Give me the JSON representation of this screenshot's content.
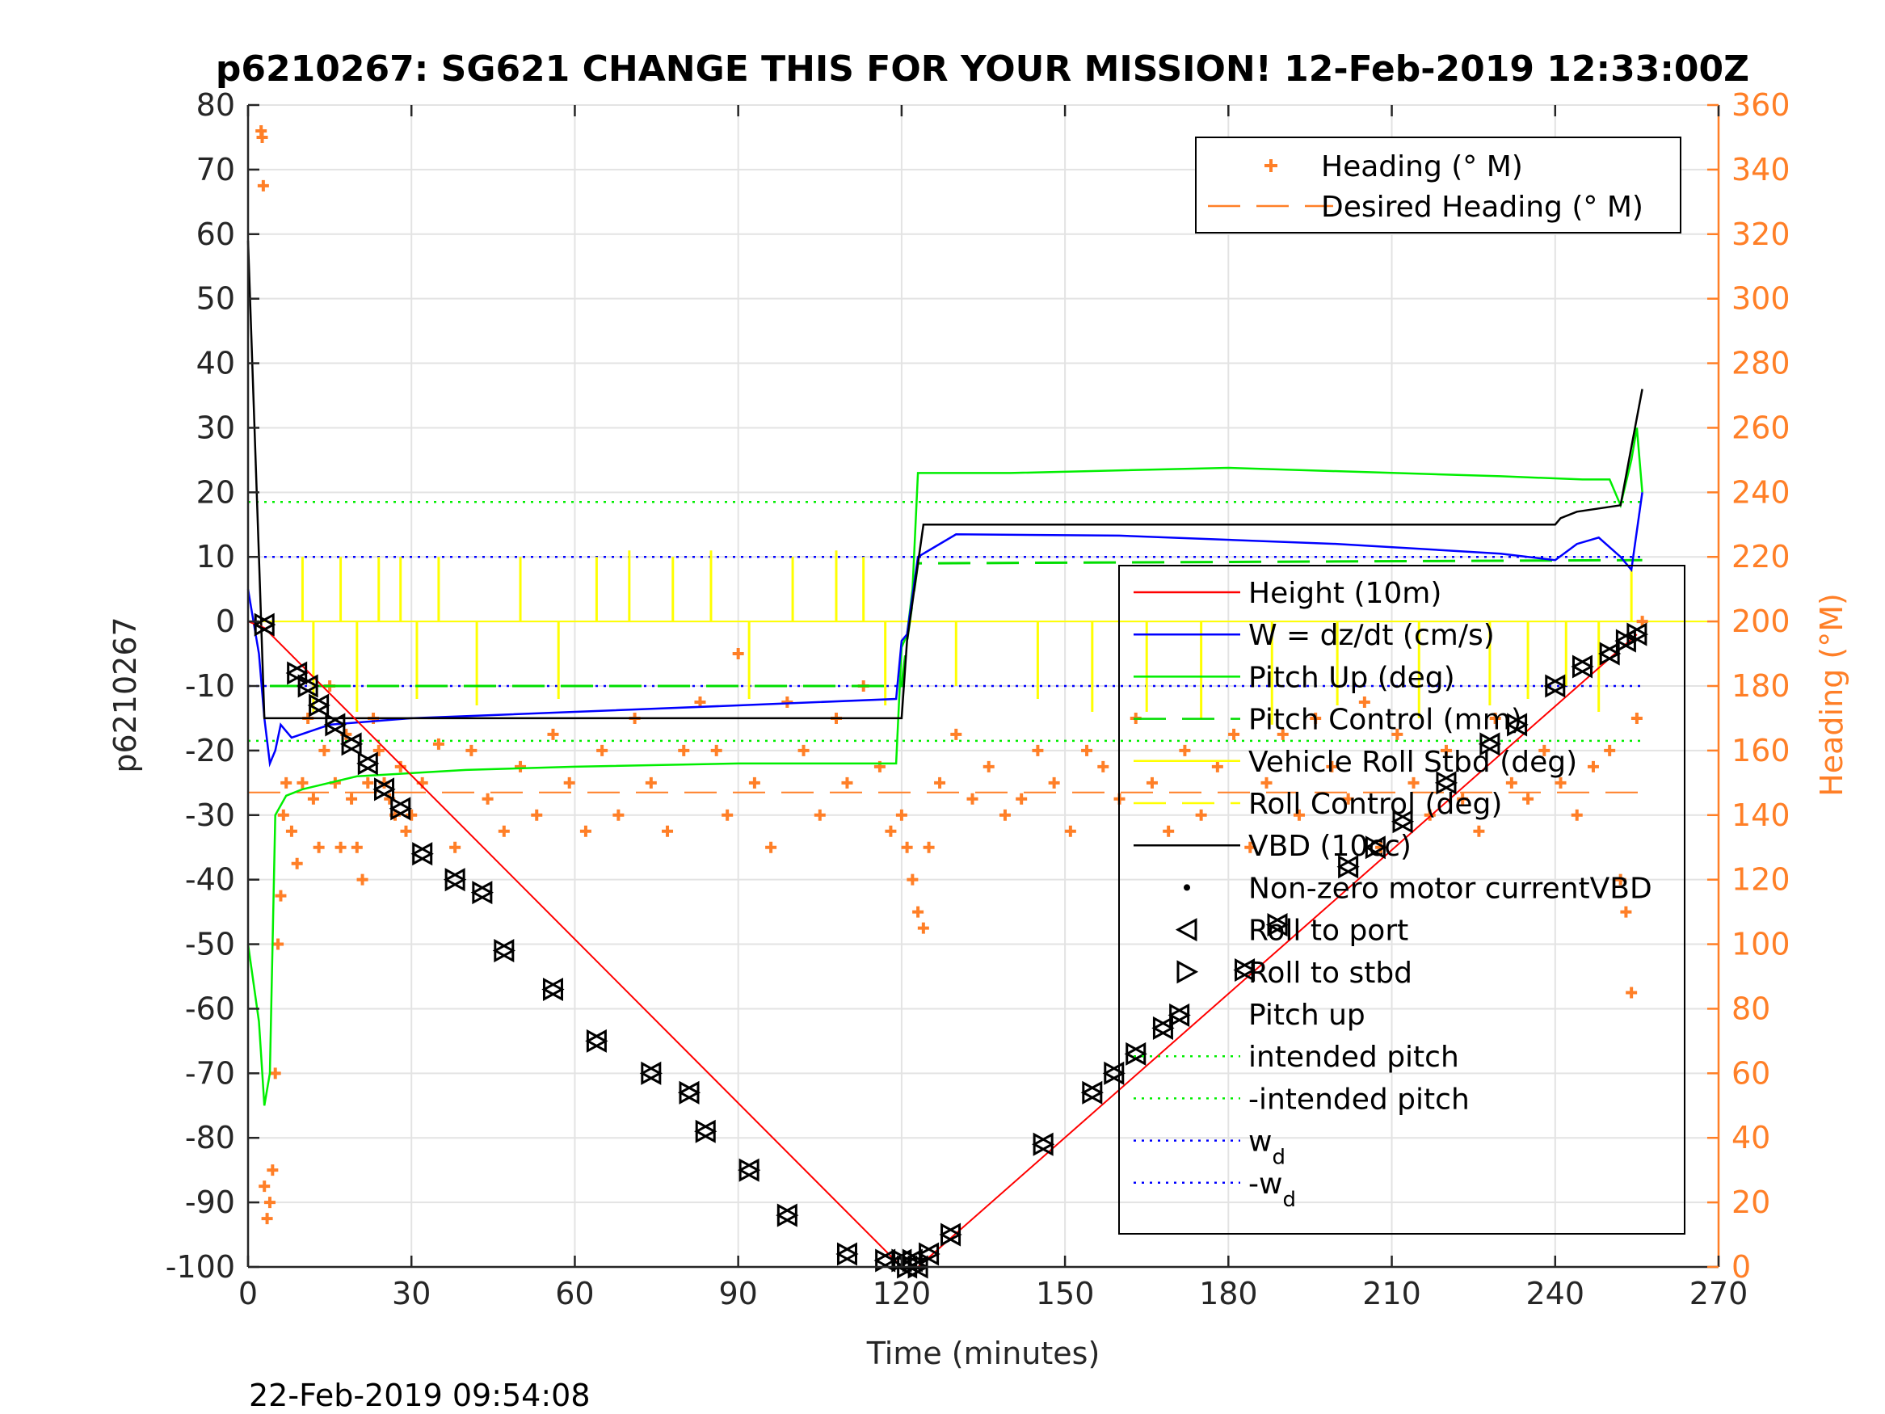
{
  "title": "p6210267: SG621 CHANGE THIS FOR YOUR MISSION! 12-Feb-2019 12:33:00Z",
  "timestamp": "22-Feb-2019 09:54:08",
  "colors": {
    "height": "#ff0000",
    "w": "#0000ff",
    "pitch": "#00ee00",
    "pitch_control": "#00dd00",
    "roll": "#ffff00",
    "vbd": "#000000",
    "heading": "#ff7f27",
    "wd": "#0000ff",
    "intended": "#00ee00"
  },
  "chart_data": {
    "type": "line",
    "title": "p6210267: SG621 CHANGE THIS FOR YOUR MISSION! 12-Feb-2019 12:33:00Z",
    "xlabel": "Time (minutes)",
    "ylabel": "p6210267",
    "y2label": "Heading (°M)",
    "xlim": [
      0,
      270
    ],
    "ylim": [
      -100,
      80
    ],
    "y2lim": [
      0,
      360
    ],
    "xticks": [
      "0",
      "30",
      "60",
      "90",
      "120",
      "150",
      "180",
      "210",
      "240",
      "270"
    ],
    "yticks": [
      "-100",
      "-90",
      "-80",
      "-70",
      "-60",
      "-50",
      "-40",
      "-30",
      "-20",
      "-10",
      "0",
      "10",
      "20",
      "30",
      "40",
      "50",
      "60",
      "70",
      "80"
    ],
    "y2ticks": [
      "0",
      "20",
      "40",
      "60",
      "80",
      "100",
      "120",
      "140",
      "160",
      "180",
      "200",
      "220",
      "240",
      "260",
      "280",
      "300",
      "320",
      "340",
      "360"
    ],
    "grid": true,
    "legend_main": {
      "position": "right",
      "entries": [
        "Height (10m)",
        "W = dz/dt (cm/s)",
        "Pitch Up (deg)",
        "Pitch Control (mm)",
        "Vehicle Roll Stbd (deg)",
        "Roll Control (deg)",
        "VBD (10cc)",
        "Non-zero motor currentVBD",
        "Roll to port",
        "Roll to stbd",
        "Pitch up",
        "intended pitch",
        "-intended pitch",
        "w",
        "-w"
      ],
      "subscript": "d"
    },
    "legend_heading": {
      "position": "top-right",
      "entries": [
        "Heading (° M)",
        "Desired Heading (° M)"
      ]
    },
    "series": [
      {
        "name": "Height (10m)",
        "x": [
          0,
          3,
          120,
          123,
          255
        ],
        "y": [
          0,
          -1,
          -100,
          -100,
          -2
        ]
      },
      {
        "name": "W = dz/dt (cm/s)",
        "x": [
          0,
          1,
          2,
          3,
          4,
          5,
          6,
          8,
          15,
          30,
          60,
          90,
          119,
          120,
          121,
          123,
          130,
          160,
          200,
          230,
          240,
          244,
          248,
          252,
          254,
          256
        ],
        "y": [
          5,
          0,
          -5,
          -15,
          -22,
          -20,
          -16,
          -18,
          -16,
          -15,
          -14,
          -13,
          -12,
          -3,
          -2,
          10,
          13.5,
          13.3,
          12,
          10.5,
          9.5,
          12,
          13,
          10,
          8,
          20
        ]
      },
      {
        "name": "Pitch Up (deg)",
        "x": [
          0,
          2,
          3,
          4,
          5,
          7,
          10,
          20,
          40,
          60,
          90,
          119,
          120,
          121,
          122,
          123,
          140,
          180,
          230,
          245,
          250,
          252,
          254,
          255,
          256
        ],
        "y": [
          -50,
          -62,
          -75,
          -70,
          -30,
          -27,
          -26,
          -24,
          -23,
          -22.5,
          -22,
          -22,
          -4,
          -2,
          5,
          23,
          23,
          23.8,
          22.5,
          22,
          22,
          18,
          25,
          30,
          20
        ]
      },
      {
        "name": "Pitch Control (mm)",
        "x": [
          4,
          120,
          121,
          123,
          256
        ],
        "y": [
          -10,
          -10,
          -3,
          9,
          9.5
        ]
      },
      {
        "name": "VBD (10cc)",
        "x": [
          0,
          2,
          3,
          120,
          121,
          124,
          240,
          241,
          244,
          252,
          254,
          256
        ],
        "y": [
          59,
          10,
          -15,
          -15,
          -3,
          15,
          15,
          16,
          17,
          18,
          27,
          36
        ]
      },
      {
        "name": "Roll Control (deg)",
        "x": [
          0,
          270
        ],
        "y": [
          0,
          0
        ]
      },
      {
        "name": "intended pitch",
        "x": [
          0,
          256
        ],
        "y": [
          18.5,
          18.5
        ]
      },
      {
        "name": "-intended pitch",
        "x": [
          0,
          256
        ],
        "y": [
          -18.5,
          -18.5
        ]
      },
      {
        "name": "w_d",
        "x": [
          0,
          256
        ],
        "y": [
          10,
          10
        ]
      },
      {
        "name": "-w_d",
        "x": [
          0,
          256
        ],
        "y": [
          -10,
          -10
        ]
      },
      {
        "name": "Desired Heading (° M)",
        "axis": "right",
        "x": [
          0,
          256
        ],
        "y": [
          147,
          147
        ]
      }
    ],
    "heading": {
      "name": "Heading (° M)",
      "axis": "right",
      "x": [
        2.4,
        2.6,
        2.8,
        3,
        3.5,
        4,
        4.5,
        5,
        5.5,
        6,
        6.5,
        7,
        8,
        9,
        10,
        11,
        12,
        13,
        14,
        15,
        16,
        17,
        18,
        19,
        20,
        21,
        22,
        23,
        24,
        25,
        26,
        27,
        28,
        29,
        30,
        32,
        35,
        38,
        41,
        44,
        47,
        50,
        53,
        56,
        59,
        62,
        65,
        68,
        71,
        74,
        77,
        80,
        83,
        86,
        88,
        90,
        93,
        96,
        99,
        102,
        105,
        108,
        110,
        113,
        116,
        118,
        120,
        121,
        122,
        123,
        124,
        125,
        127,
        130,
        133,
        136,
        139,
        142,
        145,
        148,
        151,
        154,
        157,
        160,
        163,
        166,
        169,
        172,
        175,
        178,
        181,
        184,
        187,
        190,
        193,
        196,
        199,
        202,
        205,
        208,
        211,
        214,
        217,
        220,
        223,
        226,
        229,
        232,
        235,
        238,
        241,
        244,
        247,
        250,
        252,
        253,
        254,
        255,
        256
      ],
      "y": [
        352,
        350,
        335,
        25,
        15,
        20,
        30,
        60,
        100,
        115,
        140,
        150,
        135,
        125,
        150,
        170,
        145,
        130,
        160,
        180,
        150,
        130,
        165,
        145,
        130,
        120,
        150,
        170,
        160,
        150,
        145,
        140,
        155,
        135,
        140,
        150,
        162,
        130,
        160,
        145,
        135,
        155,
        140,
        165,
        150,
        135,
        160,
        140,
        170,
        150,
        135,
        160,
        175,
        160,
        140,
        190,
        150,
        130,
        175,
        160,
        140,
        170,
        150,
        180,
        155,
        135,
        140,
        130,
        120,
        110,
        105,
        130,
        150,
        165,
        145,
        155,
        140,
        145,
        160,
        150,
        135,
        160,
        155,
        145,
        170,
        150,
        135,
        160,
        140,
        155,
        165,
        130,
        150,
        165,
        140,
        170,
        155,
        145,
        175,
        130,
        165,
        150,
        140,
        160,
        145,
        135,
        170,
        150,
        145,
        160,
        150,
        140,
        155,
        160,
        120,
        110,
        85,
        170,
        200
      ]
    },
    "markers": {
      "roll_to_port": {
        "x": [
          3,
          9,
          11,
          13,
          16,
          19,
          22,
          25,
          28,
          32,
          38,
          43,
          47,
          56,
          64,
          74,
          81,
          84,
          92,
          99,
          110,
          117,
          120,
          121,
          122,
          123,
          125,
          129,
          146,
          155,
          159,
          163,
          168,
          171,
          183,
          189,
          202,
          207,
          212,
          220,
          228,
          233,
          240,
          245,
          250,
          253,
          255
        ],
        "y": [
          -0.5,
          -8,
          -10,
          -13,
          -16,
          -19,
          -22,
          -26,
          -29,
          -36,
          -40,
          -42,
          -51,
          -57,
          -65,
          -70,
          -73,
          -79,
          -85,
          -92,
          -98,
          -99,
          -99,
          -100,
          -99,
          -100,
          -98,
          -95,
          -81,
          -73,
          -70,
          -67,
          -63,
          -61,
          -54,
          -47,
          -38,
          -35,
          -31,
          -25,
          -19,
          -16,
          -10,
          -7,
          -5,
          -3,
          -2
        ]
      },
      "roll_to_stbd": {
        "x": [
          3,
          9,
          11,
          13,
          16,
          19,
          22,
          25,
          28,
          32,
          38,
          43,
          47,
          56,
          64,
          74,
          81,
          84,
          92,
          99,
          110,
          117,
          120,
          121,
          122,
          123,
          125,
          129,
          146,
          155,
          159,
          163,
          168,
          171,
          183,
          189,
          202,
          207,
          212,
          220,
          228,
          233,
          240,
          245,
          250,
          253,
          255
        ],
        "y": [
          -0.5,
          -8,
          -10,
          -13,
          -16,
          -19,
          -22,
          -26,
          -29,
          -36,
          -40,
          -42,
          -51,
          -57,
          -65,
          -70,
          -73,
          -79,
          -85,
          -92,
          -98,
          -99,
          -99,
          -100,
          -99,
          -100,
          -98,
          -95,
          -81,
          -73,
          -70,
          -67,
          -63,
          -61,
          -54,
          -47,
          -38,
          -35,
          -31,
          -25,
          -19,
          -16,
          -10,
          -7,
          -5,
          -3,
          -2
        ]
      },
      "roll_spikes": {
        "x": [
          10,
          12,
          17,
          20,
          24,
          28,
          31,
          35,
          42,
          50,
          57,
          64,
          70,
          78,
          85,
          92,
          100,
          108,
          113,
          117,
          130,
          145,
          155,
          165,
          175,
          188,
          200,
          215,
          228,
          235,
          242,
          248,
          254
        ],
        "y": [
          10,
          -14,
          10,
          -14,
          10,
          10,
          -12,
          10,
          -13,
          10,
          -12,
          10,
          11,
          10,
          11,
          -12,
          10,
          11,
          10,
          -13,
          -10,
          -12,
          -14,
          -14,
          -15,
          -16,
          -13,
          -15,
          -13,
          -12,
          -10,
          -14,
          8
        ]
      }
    }
  }
}
